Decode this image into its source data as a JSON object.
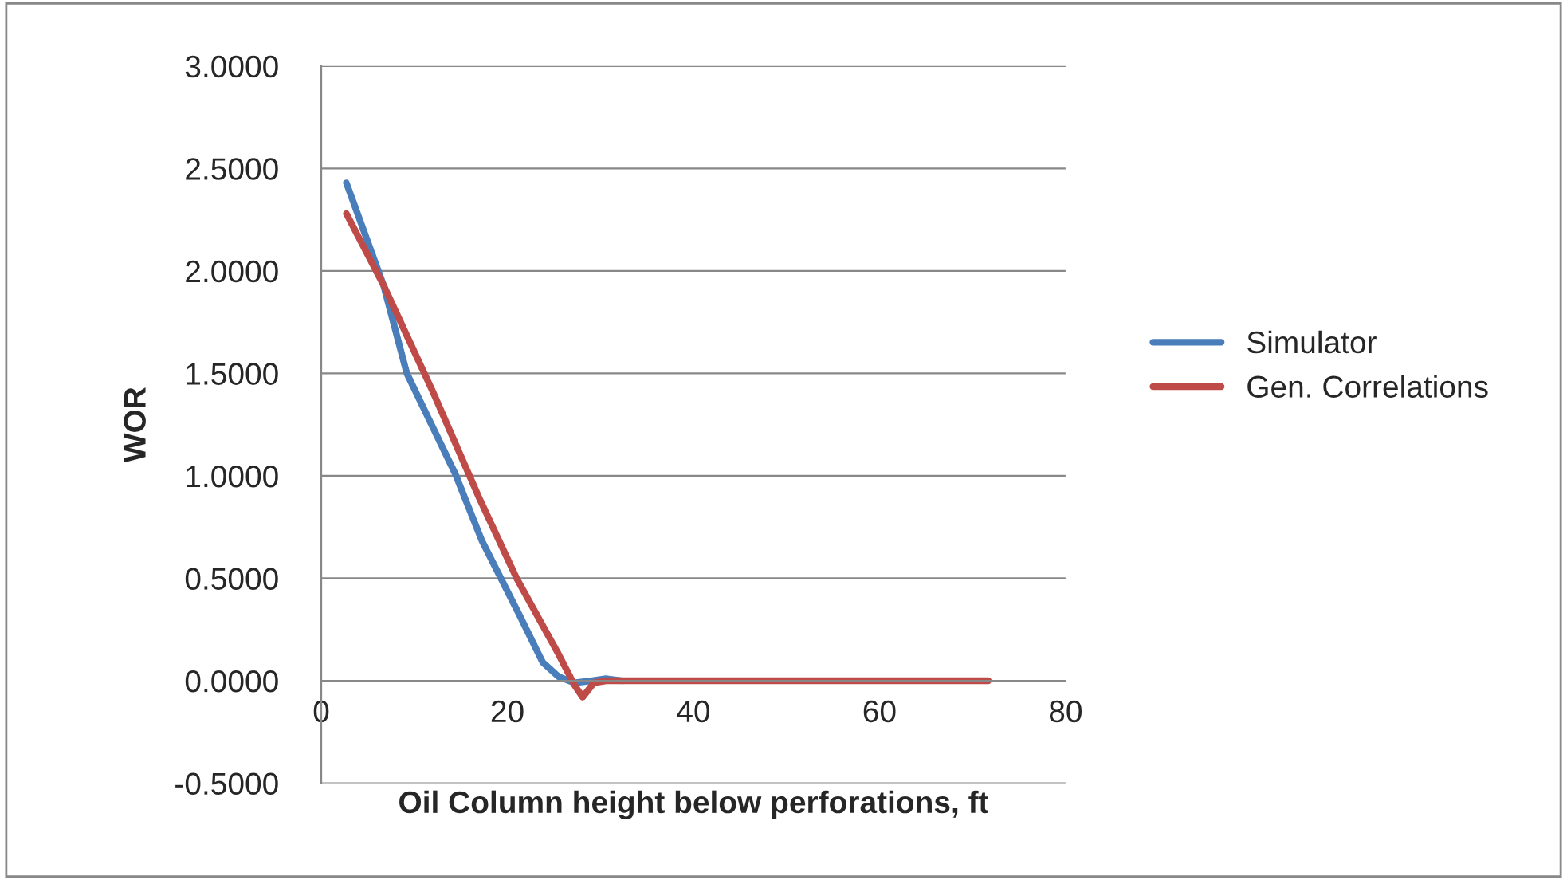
{
  "chart_data": {
    "type": "line",
    "xlabel": "Oil Column height below perforations, ft",
    "ylabel": "WOR",
    "xlim": [
      0,
      80
    ],
    "xticks": [
      0,
      20,
      40,
      60,
      80
    ],
    "ylim": [
      -0.5,
      3.0
    ],
    "yticks": [
      {
        "value": -0.5,
        "label": "-0.5000"
      },
      {
        "value": 0,
        "label": "0.0000"
      },
      {
        "value": 0.5,
        "label": "0.5000"
      },
      {
        "value": 1.0,
        "label": "1.0000"
      },
      {
        "value": 1.5,
        "label": "1.5000"
      },
      {
        "value": 2.0,
        "label": "2.0000"
      },
      {
        "value": 2.5,
        "label": "2.5000"
      },
      {
        "value": 3.0,
        "label": "3.0000"
      }
    ],
    "grid": "y",
    "legend": "right",
    "marker": "none",
    "line_style": "solid",
    "series": [
      {
        "name": "Simulator",
        "color": "#4a7ebb",
        "x": [
          2.7,
          6.7,
          9.2,
          14.4,
          17.3,
          21.2,
          23.8,
          25.5,
          27.2,
          29.0,
          30.6,
          32.4
        ],
        "values": [
          2.43,
          1.93,
          1.5,
          1.01,
          0.68,
          0.33,
          0.09,
          0.02,
          -0.01,
          0,
          0.01,
          0
        ]
      },
      {
        "name": "Gen. Correlations",
        "color": "#be4b48",
        "x": [
          2.7,
          6.7,
          12,
          16.9,
          21,
          25.5,
          27.2,
          28.1,
          29.3,
          30.6,
          40,
          50,
          60,
          71.7
        ],
        "values": [
          2.28,
          1.93,
          1.41,
          0.9,
          0.5,
          0.13,
          -0.02,
          -0.08,
          -0.01,
          0,
          0,
          0,
          0,
          0
        ]
      }
    ]
  }
}
